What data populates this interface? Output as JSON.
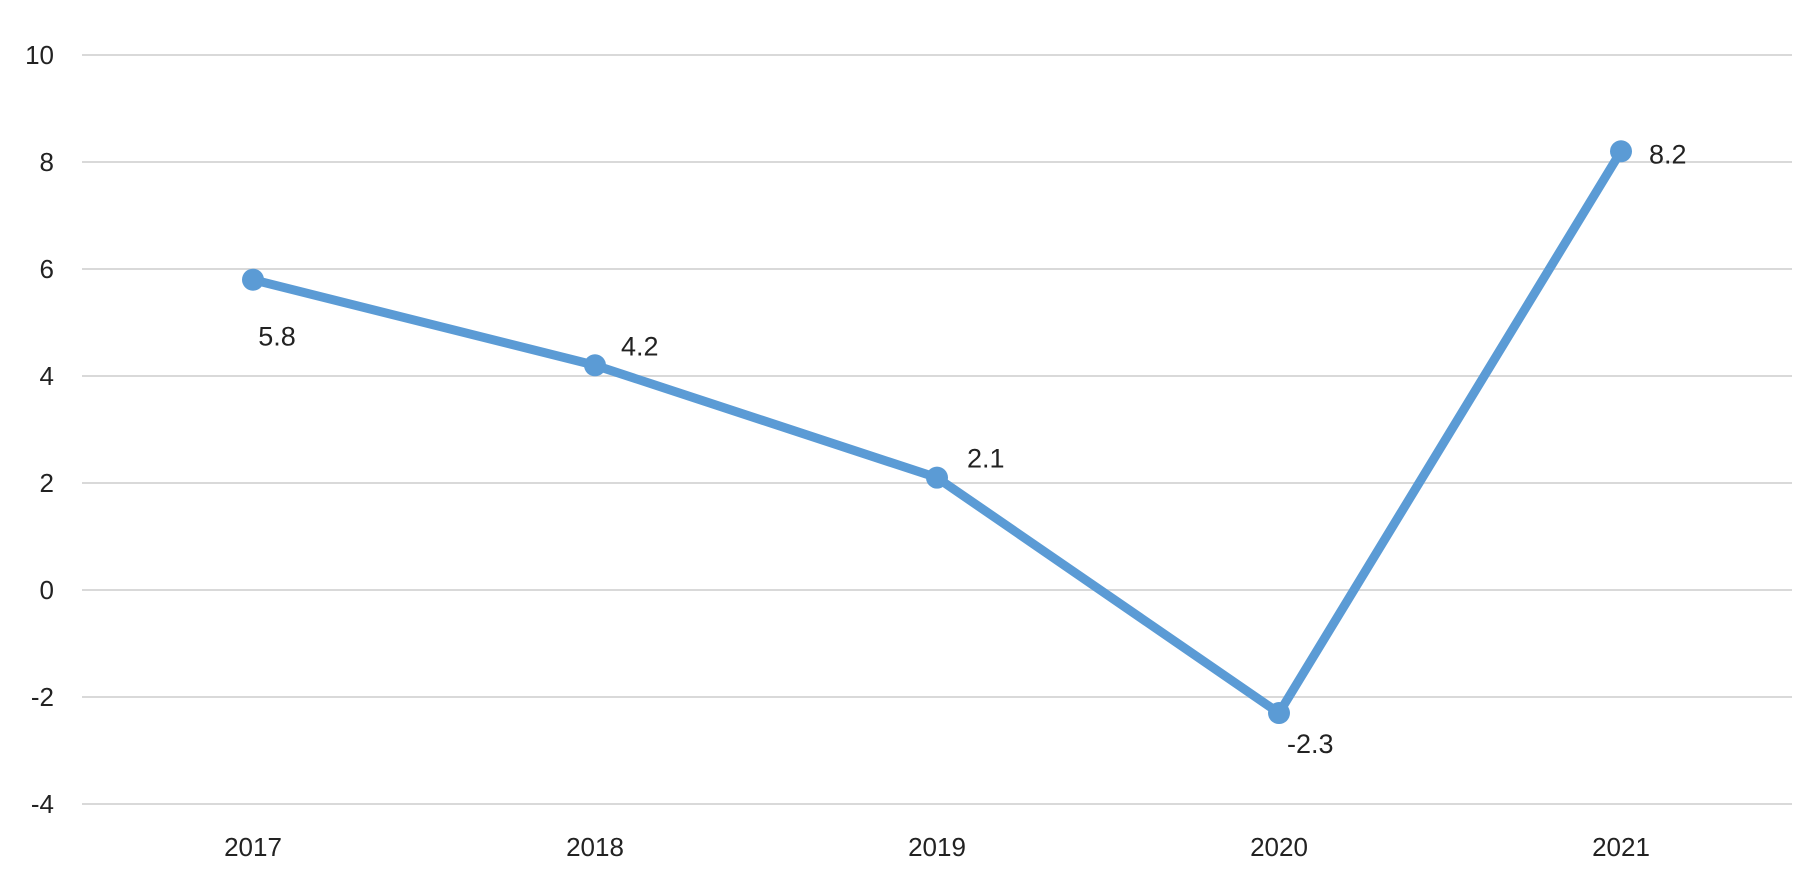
{
  "chart_data": {
    "type": "line",
    "title": "",
    "xlabel": "",
    "ylabel": "",
    "categories": [
      "2017",
      "2018",
      "2019",
      "2020",
      "2021"
    ],
    "series": [
      {
        "values": [
          5.8,
          4.2,
          2.1,
          -2.3,
          8.2
        ],
        "data_labels": [
          "5.8",
          "4.2",
          "2.1",
          "-2.3",
          "8.2"
        ],
        "color": "#5b9bd5"
      }
    ],
    "ylim": [
      -4,
      10
    ],
    "y_ticks": [
      "10",
      "8",
      "6",
      "4",
      "2",
      "0",
      "-2",
      "-4"
    ],
    "grid": true,
    "legend": "none",
    "colors": {
      "line": "#5b9bd5",
      "grid": "#d9d9d9",
      "text": "#222222"
    }
  }
}
